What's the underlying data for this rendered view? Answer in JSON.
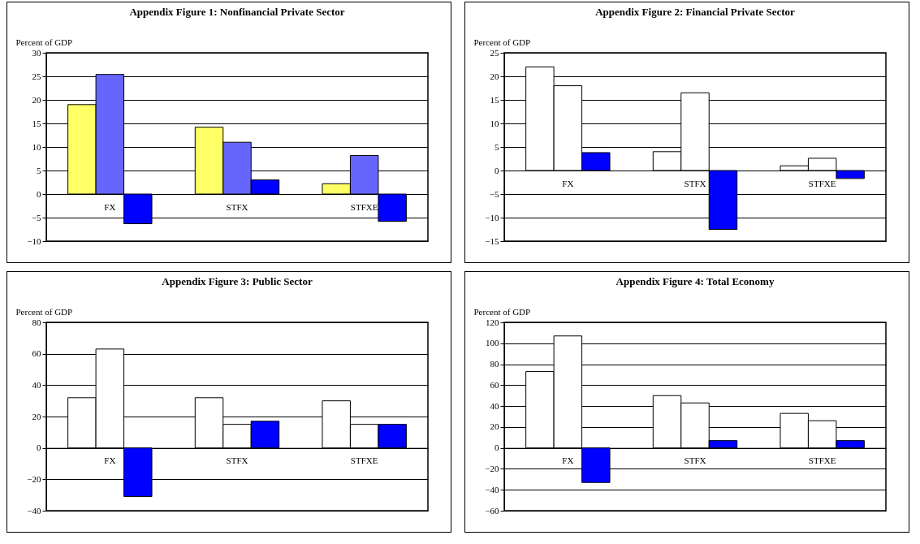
{
  "chart_data": [
    {
      "type": "bar",
      "title": "Appendix Figure 1: Nonfinancial Private Sector",
      "ylabel": "Percent of GDP",
      "categories": [
        "FX",
        "STFX",
        "STFXE"
      ],
      "series": [
        {
          "color": "#ffff66",
          "values": [
            19,
            14.2,
            2.2
          ]
        },
        {
          "color": "#6666ff",
          "values": [
            25.4,
            11,
            8.2
          ]
        },
        {
          "color": "#0000ff",
          "values": [
            -6.3,
            3,
            -5.8
          ]
        }
      ],
      "ylim": [
        -10,
        30
      ],
      "yticks": [
        -10,
        -5,
        0,
        5,
        10,
        15,
        20,
        25,
        30
      ],
      "grid": "y",
      "legend": false
    },
    {
      "type": "bar",
      "title": "Appendix Figure 2: Financial Private Sector",
      "ylabel": "Percent of GDP",
      "categories": [
        "FX",
        "STFX",
        "STFXE"
      ],
      "series": [
        {
          "color": "#ffffff",
          "values": [
            22,
            4,
            1
          ]
        },
        {
          "color": "#ffffff",
          "values": [
            18,
            16.5,
            2.6
          ]
        },
        {
          "color": "#0000ff",
          "values": [
            3.8,
            -12.5,
            -1.7
          ]
        }
      ],
      "ylim": [
        -15,
        25
      ],
      "yticks": [
        -15,
        -10,
        -5,
        0,
        5,
        10,
        15,
        20,
        25
      ],
      "grid": "y",
      "legend": false
    },
    {
      "type": "bar",
      "title": "Appendix Figure 3: Public Sector",
      "ylabel": "Percent of GDP",
      "categories": [
        "FX",
        "STFX",
        "STFXE"
      ],
      "series": [
        {
          "color": "#ffffff",
          "values": [
            32,
            32,
            30
          ]
        },
        {
          "color": "#ffffff",
          "values": [
            63,
            15,
            15
          ]
        },
        {
          "color": "#0000ff",
          "values": [
            -31,
            17,
            15
          ]
        }
      ],
      "ylim": [
        -40,
        80
      ],
      "yticks": [
        -40,
        -20,
        0,
        20,
        40,
        60,
        80
      ],
      "grid": "y",
      "legend": false
    },
    {
      "type": "bar",
      "title": "Appendix Figure 4: Total Economy",
      "ylabel": "Percent of GDP",
      "categories": [
        "FX",
        "STFX",
        "STFXE"
      ],
      "series": [
        {
          "color": "#ffffff",
          "values": [
            73,
            50,
            33
          ]
        },
        {
          "color": "#ffffff",
          "values": [
            107,
            43,
            26
          ]
        },
        {
          "color": "#0000ff",
          "values": [
            -33,
            7,
            7
          ]
        }
      ],
      "ylim": [
        -60,
        120
      ],
      "yticks": [
        -60,
        -40,
        -20,
        0,
        20,
        40,
        60,
        80,
        100,
        120
      ],
      "grid": "y",
      "legend": false
    }
  ]
}
